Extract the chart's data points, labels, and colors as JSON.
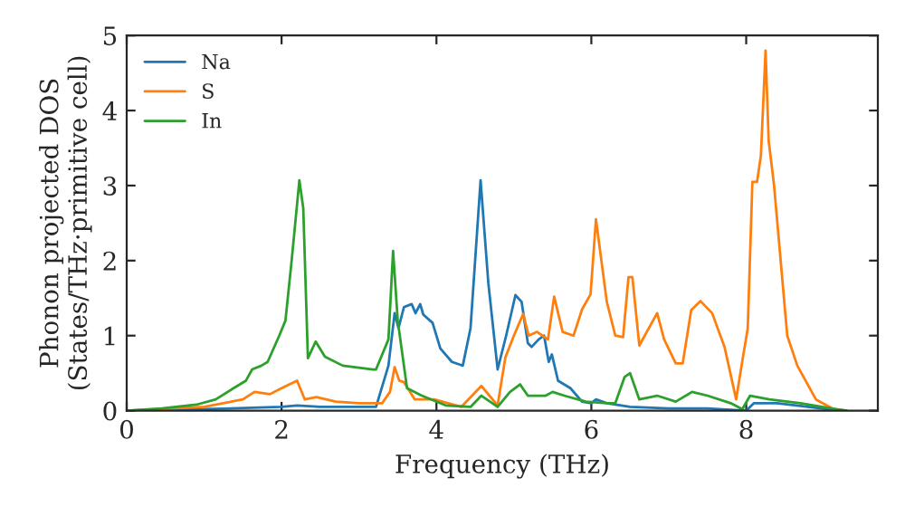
{
  "chart_data": {
    "type": "line",
    "xlabel": "Frequency (THz)",
    "ylabel": "Phonon projected DOS\n(States/THz·primitive cell)",
    "xlim": [
      0,
      9.7
    ],
    "ylim": [
      0,
      5
    ],
    "xticks": [
      0,
      2,
      4,
      6,
      8
    ],
    "yticks": [
      0,
      1,
      2,
      3,
      4,
      5
    ],
    "grid": false,
    "legend": "top left",
    "marker": "none",
    "line_style": "solid",
    "series": [
      {
        "name": "Na",
        "color": "#1f77b4",
        "x": [
          0,
          1.0,
          2.0,
          2.2,
          2.5,
          3.22,
          3.38,
          3.46,
          3.51,
          3.58,
          3.68,
          3.73,
          3.79,
          3.83,
          3.95,
          4.05,
          4.2,
          4.34,
          4.44,
          4.57,
          4.67,
          4.79,
          4.9,
          5.02,
          5.1,
          5.18,
          5.23,
          5.32,
          5.39,
          5.45,
          5.49,
          5.57,
          5.73,
          5.88,
          6.0,
          6.06,
          6.2,
          6.5,
          7.0,
          7.5,
          8.0,
          8.1,
          8.4,
          8.8,
          9.2
        ],
        "values": [
          0,
          0.02,
          0.05,
          0.07,
          0.05,
          0.05,
          0.6,
          1.3,
          1.1,
          1.38,
          1.42,
          1.3,
          1.42,
          1.28,
          1.17,
          0.83,
          0.65,
          0.6,
          1.1,
          3.07,
          1.7,
          0.55,
          1.0,
          1.54,
          1.45,
          0.9,
          0.85,
          0.95,
          1.0,
          0.65,
          0.75,
          0.4,
          0.3,
          0.12,
          0.1,
          0.15,
          0.1,
          0.05,
          0.03,
          0.03,
          0.0,
          0.1,
          0.1,
          0.05,
          0.0
        ]
      },
      {
        "name": "S",
        "color": "#ff7f0e",
        "x": [
          0,
          1.0,
          1.5,
          1.65,
          1.85,
          2.0,
          2.2,
          2.3,
          2.45,
          2.7,
          3.0,
          3.3,
          3.4,
          3.46,
          3.52,
          3.58,
          3.72,
          3.97,
          4.32,
          4.58,
          4.79,
          4.89,
          5.0,
          5.12,
          5.19,
          5.3,
          5.44,
          5.52,
          5.63,
          5.77,
          5.88,
          5.99,
          6.06,
          6.2,
          6.31,
          6.41,
          6.48,
          6.53,
          6.62,
          6.85,
          6.94,
          7.09,
          7.18,
          7.29,
          7.41,
          7.56,
          7.72,
          7.87,
          7.94,
          8.02,
          8.08,
          8.14,
          8.19,
          8.25,
          8.29,
          8.36,
          8.53,
          8.66,
          8.9,
          9.13,
          9.3
        ],
        "values": [
          0,
          0.05,
          0.15,
          0.25,
          0.22,
          0.3,
          0.4,
          0.15,
          0.18,
          0.12,
          0.1,
          0.1,
          0.25,
          0.58,
          0.4,
          0.38,
          0.15,
          0.15,
          0.05,
          0.33,
          0.07,
          0.71,
          1.0,
          1.29,
          1.0,
          1.05,
          0.95,
          1.52,
          1.05,
          1.0,
          1.35,
          1.55,
          2.55,
          1.45,
          1.0,
          0.98,
          1.78,
          1.78,
          0.87,
          1.3,
          0.95,
          0.63,
          0.63,
          1.34,
          1.46,
          1.3,
          0.85,
          0.15,
          0.6,
          1.1,
          3.05,
          3.05,
          3.4,
          4.8,
          3.6,
          3.0,
          1.0,
          0.6,
          0.15,
          0.02,
          0
        ]
      },
      {
        "name": "In",
        "color": "#2ca02c",
        "x": [
          0,
          0.45,
          0.9,
          1.15,
          1.38,
          1.54,
          1.62,
          1.74,
          1.82,
          1.97,
          2.05,
          2.13,
          2.23,
          2.28,
          2.34,
          2.44,
          2.56,
          2.79,
          3.18,
          3.22,
          3.38,
          3.44,
          3.5,
          3.62,
          3.81,
          4.12,
          4.44,
          4.58,
          4.79,
          4.95,
          5.08,
          5.18,
          5.41,
          5.5,
          5.65,
          5.93,
          6.2,
          6.31,
          6.43,
          6.5,
          6.62,
          6.85,
          7.09,
          7.3,
          7.5,
          7.8,
          7.95,
          8.05,
          8.3,
          8.7,
          9.1,
          9.3
        ],
        "values": [
          0,
          0.03,
          0.08,
          0.15,
          0.3,
          0.4,
          0.55,
          0.6,
          0.65,
          1.0,
          1.2,
          2.0,
          3.07,
          2.7,
          0.7,
          0.92,
          0.72,
          0.6,
          0.55,
          0.55,
          0.95,
          2.13,
          1.2,
          0.3,
          0.2,
          0.07,
          0.05,
          0.2,
          0.05,
          0.25,
          0.35,
          0.2,
          0.2,
          0.25,
          0.2,
          0.12,
          0.1,
          0.1,
          0.45,
          0.5,
          0.15,
          0.2,
          0.12,
          0.25,
          0.2,
          0.1,
          0.02,
          0.2,
          0.15,
          0.1,
          0.03,
          0
        ]
      }
    ]
  }
}
